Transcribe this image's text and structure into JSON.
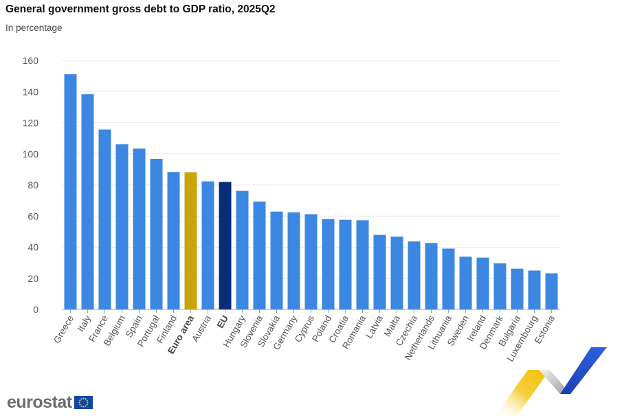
{
  "header": {
    "title": "General government gross debt to GDP ratio, 2025Q2",
    "subtitle": "In percentage"
  },
  "branding": {
    "logo_text": "eurostat",
    "flag_icon": "eu-flag-icon"
  },
  "colors": {
    "country": "#3b87e1",
    "euro_area": "#c9a50b",
    "eu": "#0a2d7a",
    "grid": "#e4e8ee"
  },
  "chart_data": {
    "type": "bar",
    "title": "General government gross debt to GDP ratio, 2025Q2",
    "subtitle": "In percentage",
    "xlabel": "",
    "ylabel": "",
    "ylim": [
      0,
      160
    ],
    "yticks": [
      0,
      20,
      40,
      60,
      80,
      100,
      120,
      140,
      160
    ],
    "grid": true,
    "categories": [
      "Greece",
      "Italy",
      "France",
      "Belgium",
      "Spain",
      "Portugal",
      "Finland",
      "Euro area",
      "Austria",
      "EU",
      "Hungary",
      "Slovenia",
      "Slovakia",
      "Germany",
      "Cyprus",
      "Poland",
      "Croatia",
      "Romania",
      "Latvia",
      "Malta",
      "Czechia",
      "Netherlands",
      "Lithuania",
      "Sweden",
      "Ireland",
      "Denmark",
      "Bulgaria",
      "Luxembourg",
      "Estonia"
    ],
    "values": [
      151.2,
      138.3,
      115.6,
      106.2,
      103.4,
      96.8,
      88.3,
      88.2,
      82.3,
      81.9,
      76.2,
      69.3,
      62.9,
      62.4,
      61.2,
      58.1,
      57.6,
      57.3,
      47.9,
      46.8,
      43.7,
      42.7,
      39.1,
      33.9,
      33.3,
      29.6,
      26.2,
      25.0,
      23.2
    ],
    "highlight": {
      "Euro area": "euro_area",
      "EU": "eu"
    },
    "bold_categories": [
      "Euro area",
      "EU"
    ]
  }
}
